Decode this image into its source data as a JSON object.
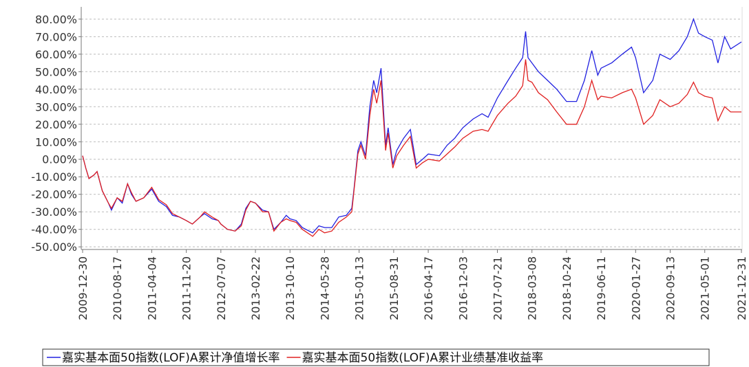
{
  "chart_data": {
    "type": "line",
    "x": [
      "2009-12-30",
      "2010-01-20",
      "2010-02-10",
      "2010-03-15",
      "2010-04-05",
      "2010-05-10",
      "2010-06-20",
      "2010-07-10",
      "2010-08-17",
      "2010-09-20",
      "2010-10-25",
      "2010-11-20",
      "2010-12-20",
      "2011-02-10",
      "2011-04-04",
      "2011-05-20",
      "2011-07-10",
      "2011-08-20",
      "2011-10-05",
      "2011-11-20",
      "2011-12-30",
      "2012-02-20",
      "2012-03-20",
      "2012-05-10",
      "2012-06-20",
      "2012-07-07",
      "2012-08-20",
      "2012-10-10",
      "2012-11-20",
      "2012-12-20",
      "2013-01-20",
      "2013-02-22",
      "2013-04-10",
      "2013-05-20",
      "2013-06-25",
      "2013-08-10",
      "2013-09-15",
      "2013-10-10",
      "2013-11-20",
      "2013-12-31",
      "2014-03-10",
      "2014-04-20",
      "2014-05-28",
      "2014-07-15",
      "2014-08-30",
      "2014-10-20",
      "2014-11-25",
      "2014-12-10",
      "2015-01-05",
      "2015-01-25",
      "2015-02-25",
      "2015-03-25",
      "2015-04-20",
      "2015-05-10",
      "2015-06-08",
      "2015-07-08",
      "2015-07-25",
      "2015-08-25",
      "2015-09-20",
      "2015-11-05",
      "2015-12-20",
      "2016-01-28",
      "2016-03-10",
      "2016-04-17",
      "2016-06-30",
      "2016-08-20",
      "2016-10-10",
      "2016-12-03",
      "2017-02-10",
      "2017-04-10",
      "2017-05-20",
      "2017-07-21",
      "2017-09-30",
      "2017-11-20",
      "2018-01-05",
      "2018-01-25",
      "2018-02-10",
      "2018-03-08",
      "2018-04-20",
      "2018-06-20",
      "2018-08-20",
      "2018-10-24",
      "2018-12-30",
      "2019-02-20",
      "2019-04-10",
      "2019-05-20",
      "2019-06-11",
      "2019-08-20",
      "2019-10-30",
      "2019-12-31",
      "2020-01-27",
      "2020-03-20",
      "2020-05-20",
      "2020-07-06",
      "2020-09-13",
      "2020-11-10",
      "2021-01-05",
      "2021-02-15",
      "2021-03-20",
      "2021-05-01",
      "2021-06-20",
      "2021-07-28",
      "2021-09-10",
      "2021-10-20",
      "2021-12-31"
    ],
    "series": [
      {
        "name": "嘉实基本面50指数(LOF)A累计净值增长率",
        "color": "#2020e0",
        "values": [
          2,
          -5,
          -11,
          -9,
          -7,
          -18,
          -25,
          -29,
          -22,
          -25,
          -14,
          -20,
          -24,
          -22,
          -17,
          -24,
          -27,
          -32,
          -33,
          -35,
          -37,
          -33,
          -31,
          -34,
          -35,
          -37,
          -40,
          -41,
          -37,
          -28,
          -24,
          -25,
          -29,
          -30,
          -40,
          -36,
          -32,
          -34,
          -35,
          -39,
          -42,
          -38,
          -39,
          -39,
          -33,
          -32,
          -28,
          -17,
          5,
          10,
          2,
          30,
          45,
          38,
          52,
          8,
          18,
          -3,
          5,
          12,
          17,
          -3,
          0,
          3,
          2,
          8,
          12,
          18,
          23,
          26,
          24,
          35,
          45,
          52,
          58,
          73,
          58,
          55,
          50,
          45,
          40,
          33,
          33,
          45,
          62,
          48,
          52,
          55,
          60,
          64,
          58,
          38,
          45,
          60,
          57,
          62,
          70,
          80,
          72,
          70,
          68,
          55,
          70,
          63,
          67
        ]
      },
      {
        "name": "嘉实基本面50指数(LOF)A累计业绩基准收益率",
        "color": "#e02020",
        "values": [
          2,
          -5,
          -11,
          -9,
          -7,
          -18,
          -25,
          -28,
          -22,
          -24,
          -14,
          -19,
          -24,
          -22,
          -16,
          -23,
          -26,
          -31,
          -33,
          -35,
          -37,
          -33,
          -30,
          -33,
          -35,
          -37,
          -40,
          -41,
          -38,
          -29,
          -24,
          -25,
          -30,
          -30,
          -41,
          -36,
          -34,
          -35,
          -36,
          -40,
          -44,
          -40,
          -42,
          -41,
          -36,
          -33,
          -30,
          -18,
          3,
          8,
          0,
          25,
          40,
          32,
          45,
          5,
          15,
          -5,
          2,
          8,
          13,
          -5,
          -2,
          0,
          -1,
          3,
          7,
          12,
          16,
          17,
          16,
          25,
          32,
          36,
          42,
          57,
          45,
          44,
          38,
          34,
          27,
          20,
          20,
          30,
          45,
          34,
          36,
          35,
          38,
          40,
          35,
          20,
          25,
          34,
          30,
          32,
          37,
          44,
          38,
          36,
          35,
          22,
          30,
          27,
          27
        ]
      }
    ],
    "xlim": [
      "2009-12-30",
      "2021-12-31"
    ],
    "xticks": [
      "2009-12-30",
      "2010-08-17",
      "2011-04-04",
      "2011-11-20",
      "2012-07-07",
      "2013-02-22",
      "2013-10-10",
      "2014-05-28",
      "2015-01-13",
      "2015-08-31",
      "2016-04-17",
      "2016-12-03",
      "2017-07-21",
      "2018-03-08",
      "2018-10-24",
      "2019-06-11",
      "2020-01-27",
      "2020-09-13",
      "2021-05-01",
      "2021-12-31"
    ],
    "ylim": [
      -51.5,
      87
    ],
    "yticks": [
      {
        "value": -50,
        "label": "-50.00%"
      },
      {
        "value": -40,
        "label": "-40.00%"
      },
      {
        "value": -30,
        "label": "-30.00%"
      },
      {
        "value": -20,
        "label": "-20.00%"
      },
      {
        "value": -10,
        "label": "-10.00%"
      },
      {
        "value": 0,
        "label": "0.00%"
      },
      {
        "value": 10,
        "label": "10.00%"
      },
      {
        "value": 20,
        "label": "20.00%"
      },
      {
        "value": 30,
        "label": "30.00%"
      },
      {
        "value": 40,
        "label": "40.00%"
      },
      {
        "value": 50,
        "label": "50.00%"
      },
      {
        "value": 60,
        "label": "60.00%"
      },
      {
        "value": 70,
        "label": "70.00%"
      },
      {
        "value": 80,
        "label": "80.00%"
      }
    ],
    "grid": true
  }
}
